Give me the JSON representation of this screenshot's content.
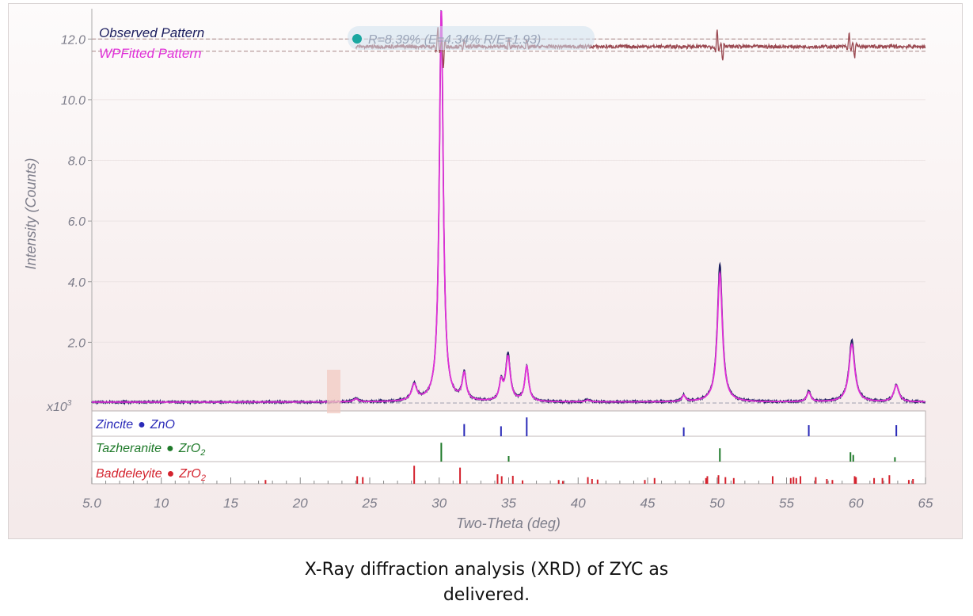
{
  "caption": {
    "line1": "X-Ray diffraction analysis (XRD) of ZYC as",
    "line2": "delivered."
  },
  "colors": {
    "observed": "#1b1d5e",
    "fitted": "#e030d8",
    "difference": "#9a4850",
    "zincite": "#2a2ab8",
    "tazheranite": "#1f7a2a",
    "baddeleyite": "#d4232e",
    "stats_marker": "#1aa7a0"
  },
  "chart_data": {
    "type": "line",
    "xlabel": "Two-Theta (deg)",
    "ylabel": "Intensity (Counts)",
    "y_multiplier": "x10",
    "y_multiplier_exp": "3",
    "xlim": [
      5,
      65
    ],
    "ylim": [
      0,
      13
    ],
    "x_ticks": [
      "5.0",
      "10",
      "15",
      "20",
      "25",
      "30",
      "35",
      "40",
      "45",
      "50",
      "55",
      "60",
      "65"
    ],
    "y_ticks": [
      "2.0",
      "4.0",
      "6.0",
      "8.0",
      "10.0",
      "12.0"
    ],
    "legend": [
      "Observed Pattern",
      "WPFitted Pattern"
    ],
    "legend_position": "top-left",
    "fit_stats": "R=8.39% (E=4.34% R/E=1.93)",
    "background_level": 0.03,
    "peaks_observed": [
      [
        28.2,
        0.55,
        0.22
      ],
      [
        30.15,
        12.9,
        0.17
      ],
      [
        31.8,
        0.9,
        0.17
      ],
      [
        34.45,
        0.6,
        0.15
      ],
      [
        34.95,
        1.55,
        0.2
      ],
      [
        36.3,
        1.15,
        0.17
      ],
      [
        24.0,
        0.12,
        0.2
      ],
      [
        40.7,
        0.08,
        0.2
      ],
      [
        47.6,
        0.22,
        0.15
      ],
      [
        50.2,
        4.55,
        0.22
      ],
      [
        56.6,
        0.35,
        0.17
      ],
      [
        59.7,
        2.05,
        0.25
      ],
      [
        62.9,
        0.55,
        0.22
      ]
    ],
    "peaks_fitted": [
      [
        28.2,
        0.52,
        0.22
      ],
      [
        30.15,
        12.9,
        0.17
      ],
      [
        31.8,
        0.85,
        0.17
      ],
      [
        34.45,
        0.6,
        0.15
      ],
      [
        34.95,
        1.45,
        0.2
      ],
      [
        36.3,
        1.15,
        0.17
      ],
      [
        24.0,
        0.1,
        0.2
      ],
      [
        40.7,
        0.06,
        0.2
      ],
      [
        47.6,
        0.2,
        0.15
      ],
      [
        50.2,
        4.25,
        0.22
      ],
      [
        56.6,
        0.32,
        0.17
      ],
      [
        59.7,
        1.9,
        0.25
      ],
      [
        62.9,
        0.55,
        0.22
      ]
    ],
    "difference_offset": 11.75,
    "difference_spikes": [
      [
        29.9,
        0.6
      ],
      [
        30.3,
        -0.7
      ],
      [
        35.0,
        0.3
      ],
      [
        50.0,
        0.55
      ],
      [
        50.4,
        -0.45
      ],
      [
        59.5,
        0.45
      ],
      [
        59.9,
        -0.35
      ],
      [
        31.8,
        0.2
      ],
      [
        36.3,
        0.2
      ]
    ],
    "phases": [
      {
        "name": "Zincite",
        "formula": "ZnO",
        "sub": "",
        "color_key": "zincite",
        "lines": [
          [
            31.8,
            0.55
          ],
          [
            34.45,
            0.45
          ],
          [
            36.3,
            0.85
          ],
          [
            47.6,
            0.4
          ],
          [
            56.6,
            0.5
          ],
          [
            62.9,
            0.5
          ]
        ]
      },
      {
        "name": "Tazheranite",
        "formula": "ZrO",
        "sub": "2",
        "color_key": "tazheranite",
        "lines": [
          [
            30.15,
            0.85
          ],
          [
            35.0,
            0.25
          ],
          [
            50.2,
            0.6
          ],
          [
            59.6,
            0.42
          ],
          [
            59.8,
            0.3
          ],
          [
            62.8,
            0.2
          ]
        ]
      },
      {
        "name": "Baddeleyite",
        "formula": "ZrO",
        "sub": "2",
        "color_key": "baddeleyite",
        "lines": [
          [
            17.5,
            0.2
          ],
          [
            24.1,
            0.4
          ],
          [
            24.5,
            0.35
          ],
          [
            28.2,
            0.95
          ],
          [
            31.5,
            0.85
          ],
          [
            34.2,
            0.5
          ],
          [
            34.5,
            0.4
          ],
          [
            35.3,
            0.42
          ],
          [
            36.0,
            0.18
          ],
          [
            38.6,
            0.2
          ],
          [
            38.9,
            0.15
          ],
          [
            40.7,
            0.35
          ],
          [
            41.0,
            0.25
          ],
          [
            41.4,
            0.22
          ],
          [
            44.8,
            0.2
          ],
          [
            45.5,
            0.3
          ],
          [
            49.2,
            0.3
          ],
          [
            49.3,
            0.4
          ],
          [
            50.1,
            0.45
          ],
          [
            50.6,
            0.35
          ],
          [
            51.2,
            0.3
          ],
          [
            54.0,
            0.4
          ],
          [
            55.3,
            0.3
          ],
          [
            55.5,
            0.35
          ],
          [
            55.7,
            0.3
          ],
          [
            56.0,
            0.4
          ],
          [
            57.1,
            0.35
          ],
          [
            57.9,
            0.25
          ],
          [
            58.3,
            0.2
          ],
          [
            59.9,
            0.4
          ],
          [
            60.0,
            0.35
          ],
          [
            61.3,
            0.3
          ],
          [
            61.9,
            0.3
          ],
          [
            62.4,
            0.45
          ],
          [
            63.8,
            0.2
          ],
          [
            64.1,
            0.25
          ]
        ]
      }
    ]
  }
}
